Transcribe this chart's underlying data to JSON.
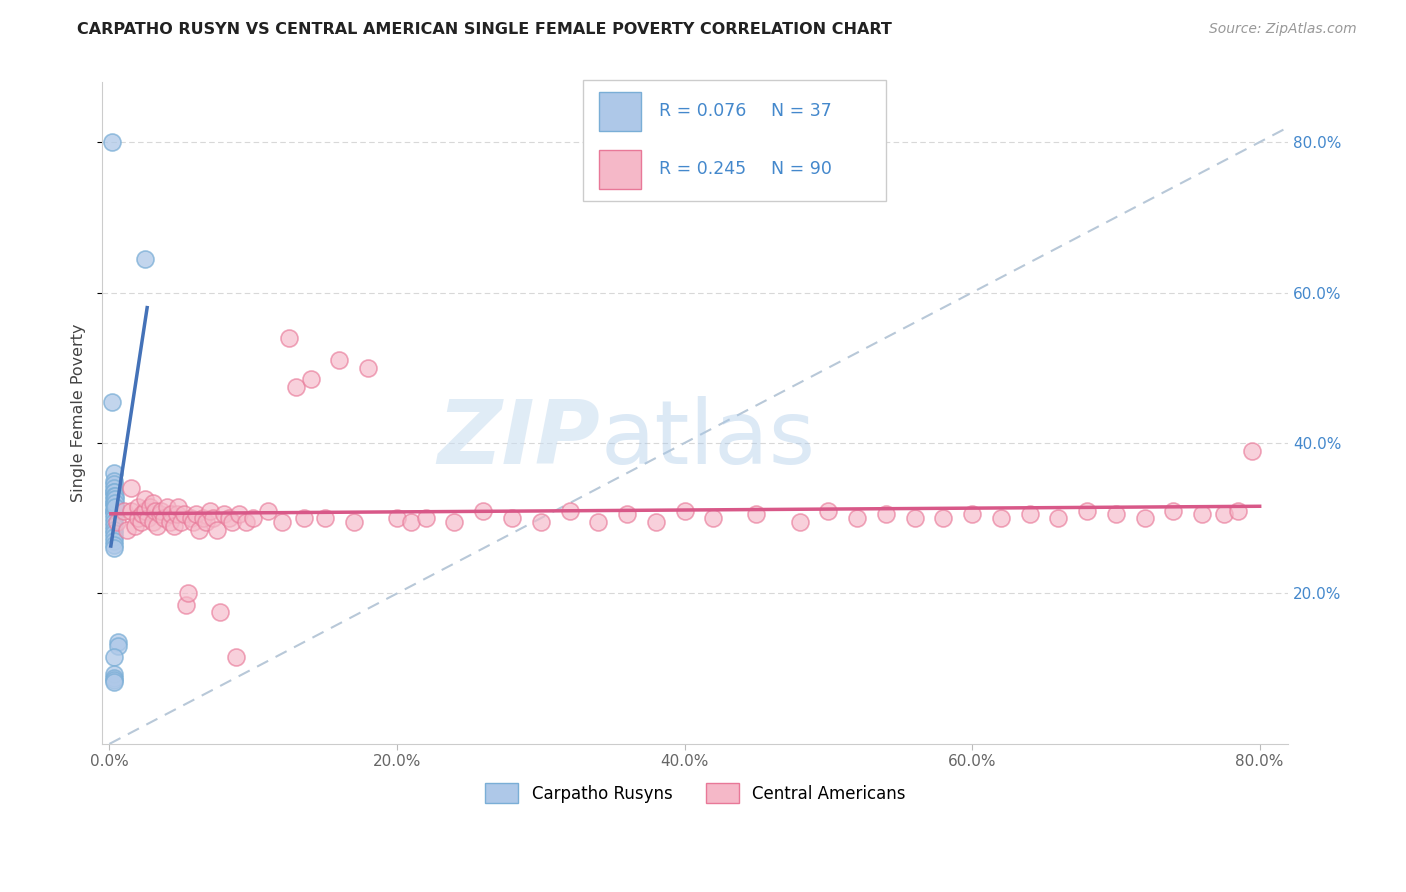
{
  "title": "CARPATHO RUSYN VS CENTRAL AMERICAN SINGLE FEMALE POVERTY CORRELATION CHART",
  "source": "Source: ZipAtlas.com",
  "ylabel": "Single Female Poverty",
  "xlim": [
    -0.005,
    0.82
  ],
  "ylim": [
    0.0,
    0.88
  ],
  "xticks": [
    0.0,
    0.2,
    0.4,
    0.6,
    0.8
  ],
  "yticks_right": [
    0.2,
    0.4,
    0.6,
    0.8
  ],
  "ytick_labels_right": [
    "20.0%",
    "40.0%",
    "60.0%",
    "80.0%"
  ],
  "xtick_labels": [
    "0.0%",
    "20.0%",
    "40.0%",
    "60.0%",
    "80.0%"
  ],
  "color_blue_fill": "#aec8e8",
  "color_blue_edge": "#7aaed6",
  "color_pink_fill": "#f5b8c8",
  "color_pink_edge": "#e87898",
  "color_blue_line": "#4472b8",
  "color_pink_line": "#d85888",
  "color_diag": "#b8c8d8",
  "color_grid": "#d8d8d8",
  "color_right_tick": "#4488cc",
  "label1": "Carpatho Rusyns",
  "label2": "Central Americans",
  "legend_r1": "R = 0.076",
  "legend_n1": "N = 37",
  "legend_r2": "R = 0.245",
  "legend_n2": "N = 90",
  "blue_x": [
    0.002,
    0.025,
    0.002,
    0.003,
    0.003,
    0.003,
    0.003,
    0.003,
    0.003,
    0.003,
    0.003,
    0.003,
    0.003,
    0.003,
    0.003,
    0.003,
    0.003,
    0.003,
    0.003,
    0.003,
    0.003,
    0.003,
    0.003,
    0.003,
    0.003,
    0.003,
    0.004,
    0.004,
    0.004,
    0.004,
    0.006,
    0.006,
    0.003,
    0.003,
    0.003,
    0.003,
    0.003
  ],
  "blue_y": [
    0.8,
    0.645,
    0.455,
    0.36,
    0.35,
    0.345,
    0.34,
    0.335,
    0.335,
    0.33,
    0.325,
    0.32,
    0.32,
    0.315,
    0.31,
    0.31,
    0.305,
    0.3,
    0.295,
    0.29,
    0.285,
    0.28,
    0.275,
    0.27,
    0.265,
    0.26,
    0.33,
    0.325,
    0.32,
    0.315,
    0.135,
    0.13,
    0.115,
    0.093,
    0.088,
    0.085,
    0.082
  ],
  "pink_x": [
    0.005,
    0.01,
    0.012,
    0.015,
    0.015,
    0.018,
    0.02,
    0.02,
    0.022,
    0.023,
    0.025,
    0.025,
    0.027,
    0.028,
    0.03,
    0.03,
    0.032,
    0.033,
    0.035,
    0.036,
    0.038,
    0.04,
    0.042,
    0.043,
    0.045,
    0.047,
    0.048,
    0.05,
    0.052,
    0.053,
    0.055,
    0.057,
    0.058,
    0.06,
    0.062,
    0.065,
    0.067,
    0.07,
    0.072,
    0.075,
    0.077,
    0.08,
    0.083,
    0.085,
    0.088,
    0.09,
    0.095,
    0.1,
    0.11,
    0.12,
    0.125,
    0.13,
    0.135,
    0.14,
    0.15,
    0.16,
    0.17,
    0.18,
    0.2,
    0.21,
    0.22,
    0.24,
    0.26,
    0.28,
    0.3,
    0.32,
    0.34,
    0.36,
    0.38,
    0.4,
    0.42,
    0.45,
    0.48,
    0.5,
    0.52,
    0.54,
    0.56,
    0.58,
    0.6,
    0.62,
    0.64,
    0.66,
    0.68,
    0.7,
    0.72,
    0.74,
    0.76,
    0.775,
    0.785,
    0.795
  ],
  "pink_y": [
    0.295,
    0.31,
    0.285,
    0.34,
    0.31,
    0.29,
    0.315,
    0.3,
    0.295,
    0.305,
    0.31,
    0.325,
    0.3,
    0.315,
    0.295,
    0.32,
    0.31,
    0.29,
    0.305,
    0.31,
    0.3,
    0.315,
    0.295,
    0.305,
    0.29,
    0.305,
    0.315,
    0.295,
    0.305,
    0.185,
    0.2,
    0.3,
    0.295,
    0.305,
    0.285,
    0.3,
    0.295,
    0.31,
    0.3,
    0.285,
    0.175,
    0.305,
    0.3,
    0.295,
    0.115,
    0.305,
    0.295,
    0.3,
    0.31,
    0.295,
    0.54,
    0.475,
    0.3,
    0.485,
    0.3,
    0.51,
    0.295,
    0.5,
    0.3,
    0.295,
    0.3,
    0.295,
    0.31,
    0.3,
    0.295,
    0.31,
    0.295,
    0.305,
    0.295,
    0.31,
    0.3,
    0.305,
    0.295,
    0.31,
    0.3,
    0.305,
    0.3,
    0.3,
    0.305,
    0.3,
    0.305,
    0.3,
    0.31,
    0.305,
    0.3,
    0.31,
    0.305,
    0.305,
    0.31,
    0.39
  ]
}
